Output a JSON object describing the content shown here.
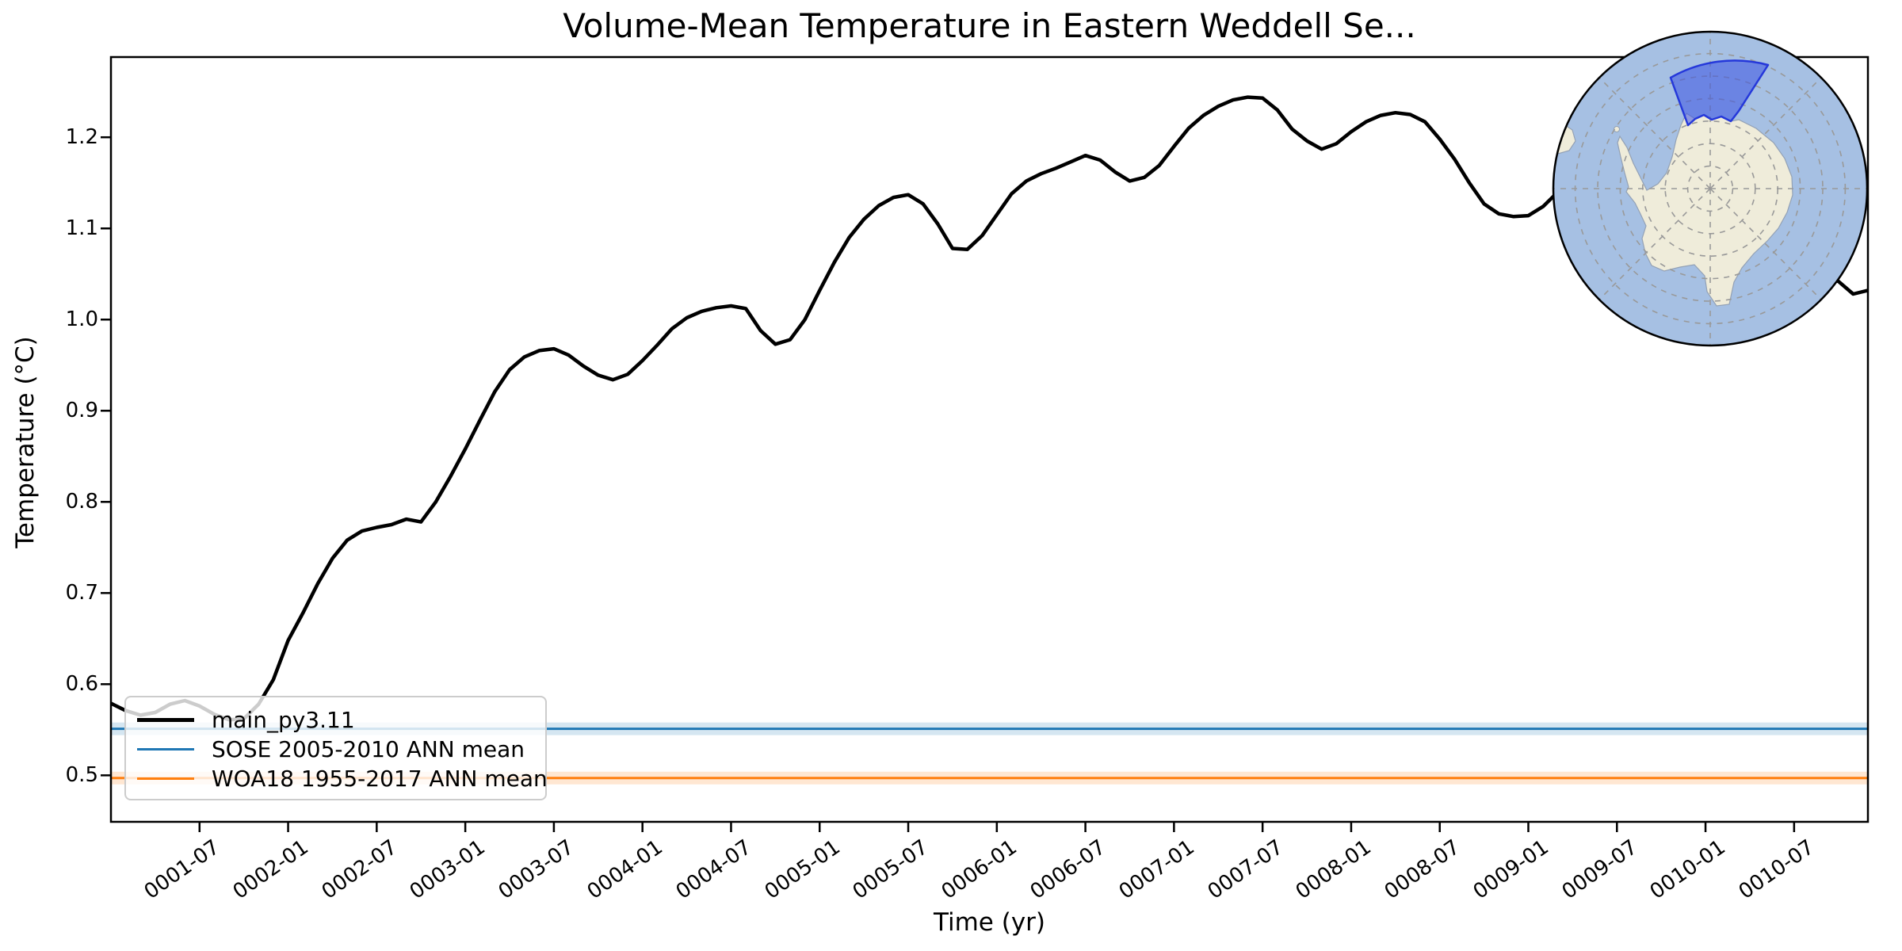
{
  "figure": {
    "title": "Volume-Mean Temperature in Eastern Weddell Se...",
    "xlabel": "Time (yr)",
    "ylabel": "Temperature (°C)"
  },
  "legend": {
    "entries": [
      {
        "label": "main_py3.11",
        "color": "#000000",
        "sample_thickness": 5
      },
      {
        "label": "SOSE 2005-2010 ANN mean",
        "color": "#1f77b4",
        "sample_thickness": 3
      },
      {
        "label": "WOA18 1955-2017 ANN mean",
        "color": "#ff7f0e",
        "sample_thickness": 3
      }
    ]
  },
  "chart_data": {
    "type": "line",
    "title": "Volume-Mean Temperature in Eastern Weddell Se...",
    "xlabel": "Time (yr)",
    "ylabel": "Temperature (°C)",
    "grid": false,
    "legend_position": "lower left",
    "x_axis": {
      "unit": "month index from 0001-01",
      "range": [
        0,
        119
      ]
    },
    "ylim": [
      0.449,
      1.288
    ],
    "x_tick_labels": [
      "0001-07",
      "0002-01",
      "0002-07",
      "0003-01",
      "0003-07",
      "0004-01",
      "0004-07",
      "0005-01",
      "0005-07",
      "0006-01",
      "0006-07",
      "0007-01",
      "0007-07",
      "0008-01",
      "0008-07",
      "0009-01",
      "0009-07",
      "0010-01",
      "0010-07"
    ],
    "x_tick_months": [
      6,
      12,
      18,
      24,
      30,
      36,
      42,
      48,
      54,
      60,
      66,
      72,
      78,
      84,
      90,
      96,
      102,
      108,
      114
    ],
    "y_tick_labels": [
      "0.5",
      "0.6",
      "0.7",
      "0.8",
      "0.9",
      "1.0",
      "1.1",
      "1.2"
    ],
    "series": [
      {
        "name": "main_py3.11",
        "color": "#000000",
        "line_width": 4.5,
        "kind": "monthly",
        "start": "0001-01",
        "values": [
          0.579,
          0.571,
          0.566,
          0.569,
          0.578,
          0.582,
          0.576,
          0.567,
          0.561,
          0.562,
          0.578,
          0.605,
          0.648,
          0.678,
          0.71,
          0.738,
          0.758,
          0.768,
          0.772,
          0.775,
          0.781,
          0.778,
          0.8,
          0.828,
          0.858,
          0.89,
          0.921,
          0.945,
          0.959,
          0.966,
          0.968,
          0.961,
          0.949,
          0.939,
          0.934,
          0.94,
          0.955,
          0.972,
          0.99,
          1.002,
          1.009,
          1.013,
          1.015,
          1.012,
          0.988,
          0.973,
          0.978,
          1.0,
          1.032,
          1.063,
          1.09,
          1.11,
          1.125,
          1.134,
          1.137,
          1.127,
          1.105,
          1.078,
          1.077,
          1.092,
          1.115,
          1.138,
          1.152,
          1.16,
          1.166,
          1.173,
          1.18,
          1.175,
          1.162,
          1.152,
          1.156,
          1.169,
          1.19,
          1.21,
          1.224,
          1.234,
          1.241,
          1.244,
          1.243,
          1.23,
          1.209,
          1.196,
          1.187,
          1.193,
          1.206,
          1.217,
          1.224,
          1.227,
          1.225,
          1.217,
          1.198,
          1.176,
          1.15,
          1.127,
          1.116,
          1.113,
          1.114,
          1.124,
          1.14,
          1.156,
          1.17,
          1.18,
          1.185,
          1.18,
          1.168,
          1.158,
          1.162,
          1.172,
          1.176,
          1.168,
          1.15,
          1.124,
          1.098,
          1.075,
          1.06,
          1.05,
          1.045,
          1.042,
          1.028,
          1.032
        ]
      },
      {
        "name": "SOSE 2005-2010 ANN mean",
        "color": "#1f77b4",
        "line_width": 3,
        "kind": "constant",
        "value": 0.551
      },
      {
        "name": "WOA18 1955-2017 ANN mean",
        "color": "#ff7f0e",
        "line_width": 3,
        "kind": "constant",
        "value": 0.497
      }
    ]
  },
  "inset_map": {
    "region_label": "Eastern Weddell Sea region",
    "ocean_color": "#a6c0e3",
    "land_color": "#efecda",
    "coast_color": "#93a1b5",
    "graticule_color": "#999999",
    "region_fill": "#3b52e3",
    "region_edge": "#2538da"
  }
}
